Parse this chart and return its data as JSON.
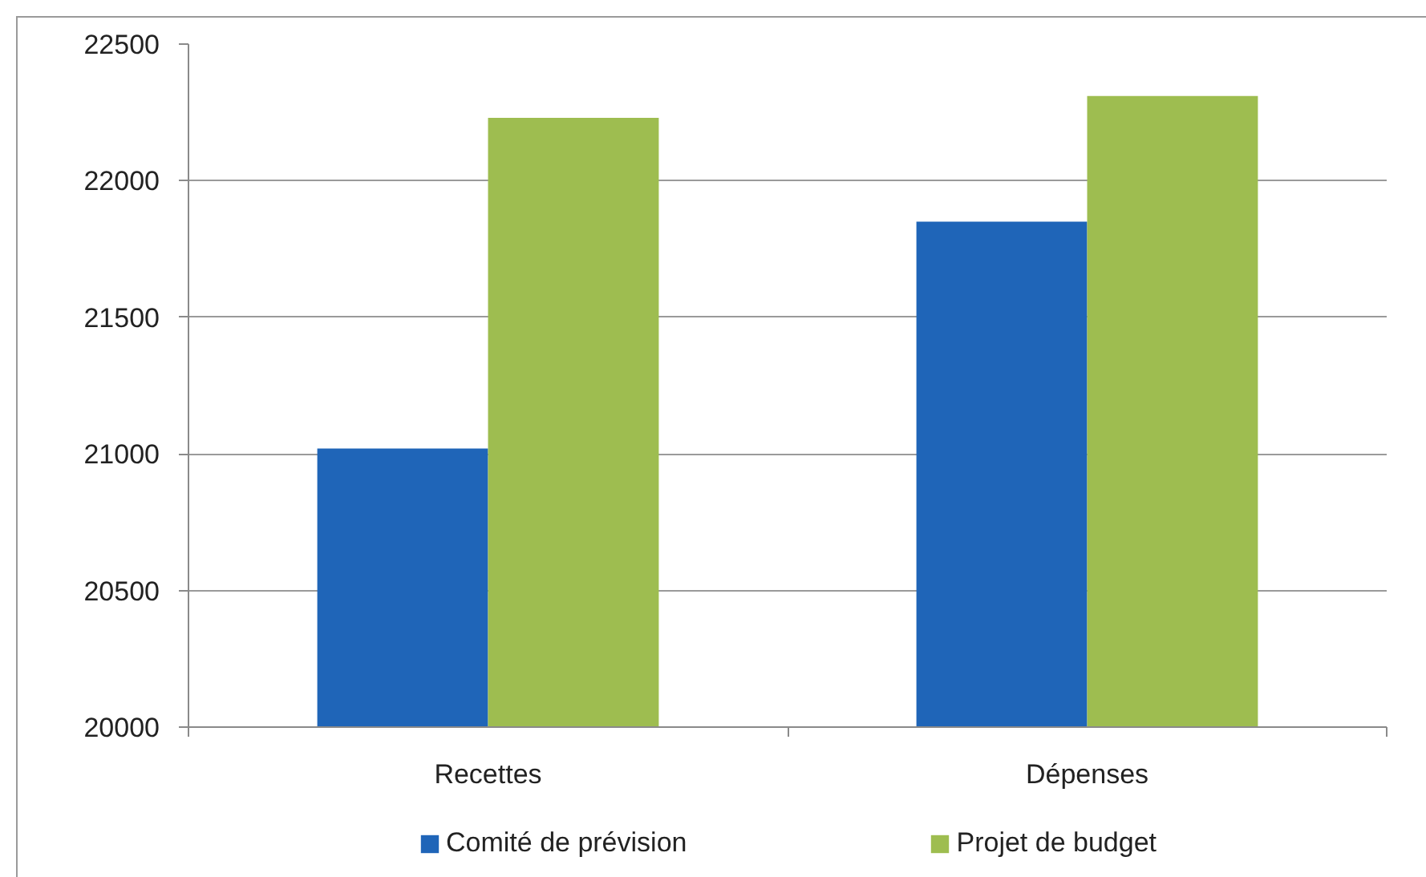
{
  "chart_data": {
    "type": "bar",
    "categories": [
      "Recettes",
      "Dépenses"
    ],
    "series": [
      {
        "name": "Comité de prévision",
        "color": "#1f65b8",
        "values": [
          21020,
          21850
        ]
      },
      {
        "name": "Projet de budget",
        "color": "#9ebd50",
        "values": [
          22230,
          22310
        ]
      }
    ],
    "ylim": [
      20000,
      22500
    ],
    "yticks": [
      20000,
      20500,
      21000,
      21500,
      22000,
      22500
    ],
    "grid": "y",
    "legend": "bottom"
  }
}
